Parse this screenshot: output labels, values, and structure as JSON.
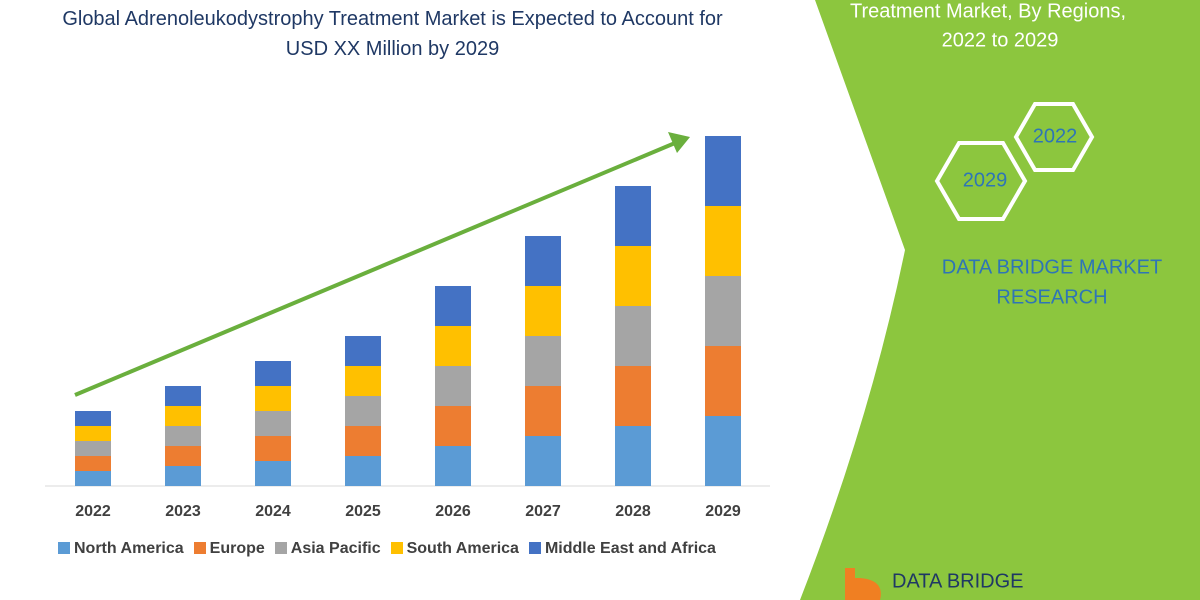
{
  "chart_data": {
    "type": "bar",
    "stacked": true,
    "title": "Global Adrenoleukodystrophy Treatment Market is Expected to Account for USD XX Million by 2029",
    "categories": [
      "2022",
      "2023",
      "2024",
      "2025",
      "2026",
      "2027",
      "2028",
      "2029"
    ],
    "series": [
      {
        "name": "North America",
        "color": "#5b9bd5",
        "values": [
          15,
          20,
          25,
          30,
          40,
          50,
          60,
          70
        ]
      },
      {
        "name": "Europe",
        "color": "#ed7d31",
        "values": [
          15,
          20,
          25,
          30,
          40,
          50,
          60,
          70
        ]
      },
      {
        "name": "Asia Pacific",
        "color": "#a5a5a5",
        "values": [
          15,
          20,
          25,
          30,
          40,
          50,
          60,
          70
        ]
      },
      {
        "name": "South America",
        "color": "#ffc000",
        "values": [
          15,
          20,
          25,
          30,
          40,
          50,
          60,
          70
        ]
      },
      {
        "name": "Middle East and Africa",
        "color": "#4472c4",
        "values": [
          15,
          20,
          25,
          30,
          40,
          50,
          60,
          70
        ]
      }
    ]
  },
  "side_panel": {
    "heading_lines": [
      "Treatment Market, By Regions,",
      "2022 to 2029"
    ],
    "hexagons": [
      "2022",
      "2029"
    ],
    "brand_lines": [
      "DATA BRIDGE MARKET",
      "RESEARCH"
    ]
  },
  "logo": {
    "text": "DATA BRIDGE"
  }
}
